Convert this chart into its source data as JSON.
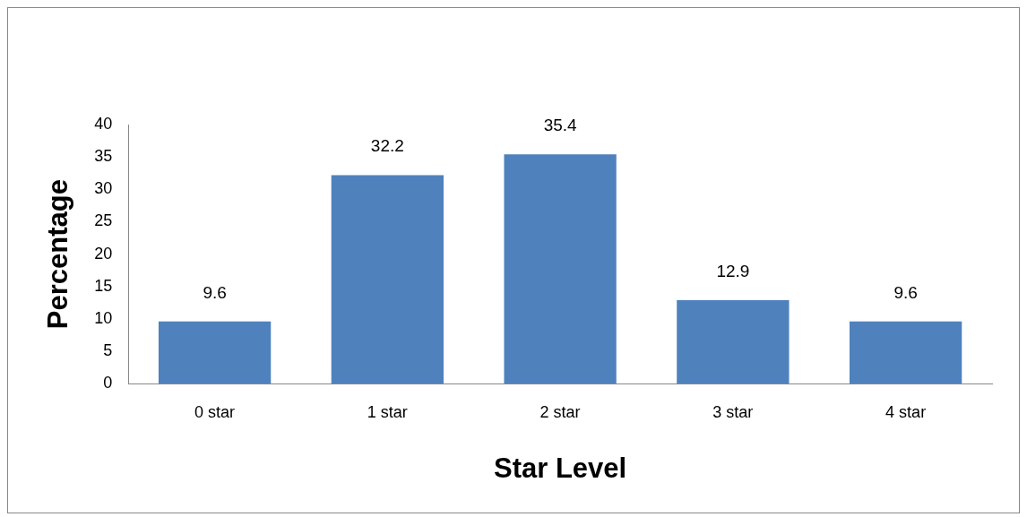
{
  "chart_data": {
    "type": "bar",
    "xlabel": "Star Level",
    "ylabel": "Percentage",
    "categories": [
      "0 star",
      "1 star",
      "2 star",
      "3 star",
      "4 star"
    ],
    "values": [
      9.6,
      32.2,
      35.4,
      12.9,
      9.6
    ],
    "color": "#4f81bd",
    "ylim": [
      0,
      40
    ],
    "yticks": [
      0,
      5,
      10,
      15,
      20,
      25,
      30,
      35,
      40
    ],
    "grid": false,
    "legend": false,
    "data_labels": true
  }
}
